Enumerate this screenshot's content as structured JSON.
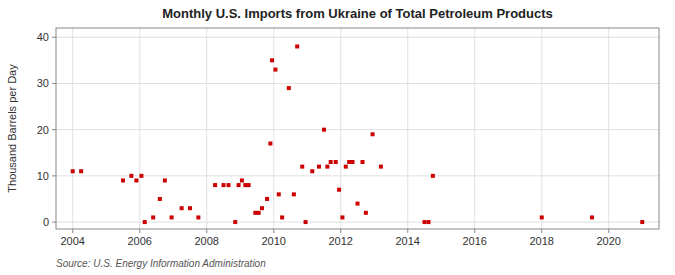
{
  "chart_data": {
    "type": "scatter",
    "title": "Monthly U.S. Imports from Ukraine of Total Petroleum Products",
    "ylabel": "Thousand Barrels per Day",
    "source": "Source: U.S. Energy Information Administration",
    "color": "#cc0000",
    "marker": "square",
    "grid": true,
    "xlim": [
      2003.5,
      2021.5
    ],
    "ylim": [
      -1.5,
      42
    ],
    "xticks": [
      2004,
      2006,
      2008,
      2010,
      2012,
      2014,
      2016,
      2018,
      2020
    ],
    "yticks": [
      0,
      10,
      20,
      30,
      40
    ],
    "x": [
      2004.0,
      2004.25,
      2005.5,
      2005.75,
      2005.9,
      2006.05,
      2006.15,
      2006.4,
      2006.6,
      2006.75,
      2006.95,
      2007.25,
      2007.5,
      2007.75,
      2008.25,
      2008.5,
      2008.65,
      2008.85,
      2008.95,
      2009.05,
      2009.15,
      2009.25,
      2009.45,
      2009.55,
      2009.65,
      2009.8,
      2009.9,
      2009.95,
      2010.05,
      2010.15,
      2010.25,
      2010.45,
      2010.6,
      2010.7,
      2010.85,
      2010.95,
      2011.15,
      2011.35,
      2011.5,
      2011.6,
      2011.7,
      2011.85,
      2011.95,
      2012.05,
      2012.15,
      2012.25,
      2012.35,
      2012.5,
      2012.65,
      2012.75,
      2012.95,
      2013.2,
      2014.5,
      2014.62,
      2014.75,
      2018.0,
      2019.5,
      2021.0
    ],
    "values": [
      11,
      11,
      9,
      10,
      9,
      10,
      0,
      1,
      5,
      9,
      1,
      3,
      3,
      1,
      8,
      8,
      8,
      0,
      8,
      9,
      8,
      8,
      2,
      2,
      3,
      5,
      17,
      35,
      33,
      6,
      1,
      29,
      6,
      38,
      12,
      0,
      11,
      12,
      20,
      12,
      13,
      13,
      7,
      1,
      12,
      13,
      13,
      4,
      13,
      2,
      19,
      12,
      0,
      0,
      10,
      1,
      1,
      0
    ]
  }
}
